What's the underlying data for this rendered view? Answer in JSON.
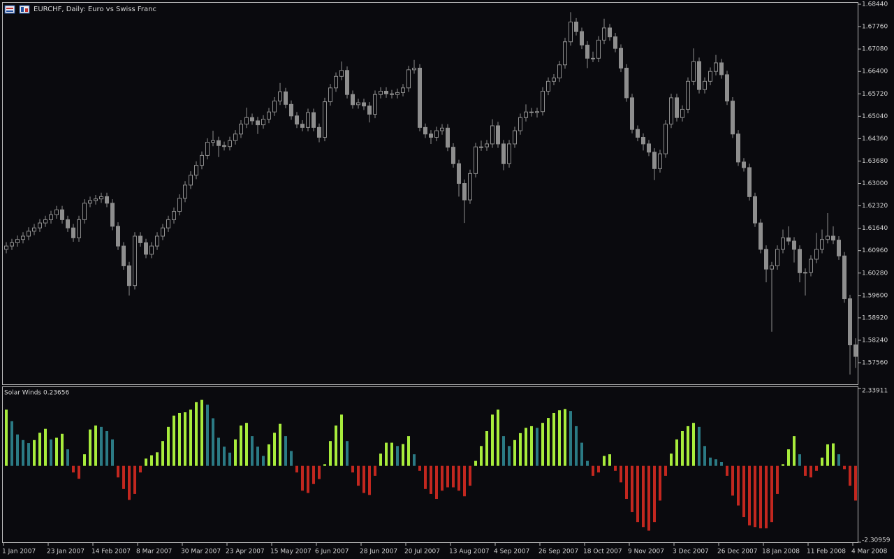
{
  "chart_data": [
    {
      "type": "candlestick",
      "title": "EURCHF, Daily:  Euro vs Swiss Franc",
      "color": "#8e8e8e",
      "categories": [
        "1 Jan 2007",
        null,
        null,
        null,
        null,
        null,
        null,
        null,
        "23 Jan 2007",
        null,
        null,
        null,
        null,
        null,
        null,
        null,
        "14 Feb 2007",
        null,
        null,
        null,
        null,
        null,
        null,
        null,
        "8 Mar 2007",
        null,
        null,
        null,
        null,
        null,
        null,
        null,
        "30 Mar 2007",
        null,
        null,
        null,
        null,
        null,
        null,
        null,
        "23 Apr 2007",
        null,
        null,
        null,
        null,
        null,
        null,
        null,
        "15 May 2007",
        null,
        null,
        null,
        null,
        null,
        null,
        null,
        "6 Jun 2007",
        null,
        null,
        null,
        null,
        null,
        null,
        null,
        "28 Jun 2007",
        null,
        null,
        null,
        null,
        null,
        null,
        null,
        "20 Jul 2007",
        null,
        null,
        null,
        null,
        null,
        null,
        null,
        "13 Aug 2007",
        null,
        null,
        null,
        null,
        null,
        null,
        null,
        "4 Sep 2007",
        null,
        null,
        null,
        null,
        null,
        null,
        null,
        "26 Sep 2007",
        null,
        null,
        null,
        null,
        null,
        null,
        null,
        "18 Oct 2007",
        null,
        null,
        null,
        null,
        null,
        null,
        null,
        "9 Nov 2007",
        null,
        null,
        null,
        null,
        null,
        null,
        null,
        "3 Dec 2007",
        null,
        null,
        null,
        null,
        null,
        null,
        null,
        "26 Dec 2007",
        null,
        null,
        null,
        null,
        null,
        null,
        null,
        "18 Jan 2008",
        null,
        null,
        null,
        null,
        null,
        null,
        null,
        "11 Feb 2008",
        null,
        null,
        null,
        null,
        null,
        null,
        null,
        "4 Mar 2008"
      ],
      "open": [
        1.61,
        1.611,
        1.612,
        1.613,
        1.614,
        1.6155,
        1.6165,
        1.618,
        1.619,
        1.6205,
        1.622,
        1.619,
        1.6165,
        1.6135,
        1.619,
        1.624,
        1.6248,
        1.6253,
        1.626,
        1.624,
        1.617,
        1.611,
        1.605,
        1.599,
        1.614,
        1.612,
        1.6085,
        1.611,
        1.614,
        1.6165,
        1.619,
        1.6215,
        1.6255,
        1.6295,
        1.6325,
        1.6355,
        1.6385,
        1.6425,
        1.643,
        1.6415,
        1.6412,
        1.643,
        1.645,
        1.648,
        1.65,
        1.649,
        1.6478,
        1.6495,
        1.6517,
        1.655,
        1.6578,
        1.654,
        1.6505,
        1.648,
        1.647,
        1.6515,
        1.647,
        1.644,
        1.6548,
        1.659,
        1.6625,
        1.6643,
        1.657,
        1.6539,
        1.6545,
        1.6535,
        1.651,
        1.657,
        1.658,
        1.6572,
        1.657,
        1.6576,
        1.659,
        1.6645,
        1.665,
        1.647,
        1.645,
        1.644,
        1.646,
        1.6468,
        1.641,
        1.636,
        1.63,
        1.625,
        1.633,
        1.6411,
        1.6411,
        1.642,
        1.6475,
        1.642,
        1.636,
        1.642,
        1.646,
        1.65,
        1.6517,
        1.6515,
        1.6518,
        1.658,
        1.661,
        1.662,
        1.666,
        1.673,
        1.679,
        1.6761,
        1.672,
        1.668,
        1.668,
        1.6735,
        1.6772,
        1.6745,
        1.671,
        1.665,
        1.656,
        1.6464,
        1.644,
        1.642,
        1.6395,
        1.6345,
        1.639,
        1.648,
        1.656,
        1.65,
        1.6525,
        1.661,
        1.667,
        1.6585,
        1.661,
        1.664,
        1.6666,
        1.663,
        1.655,
        1.645,
        1.6365,
        1.6348,
        1.626,
        1.618,
        1.61,
        1.604,
        1.605,
        1.61,
        1.6135,
        1.6125,
        1.61,
        1.6029,
        1.603,
        1.607,
        1.61,
        1.613,
        1.614,
        1.6128,
        1.608,
        1.595,
        1.581
      ],
      "high": [
        1.6122,
        1.6132,
        1.6142,
        1.6152,
        1.6167,
        1.6177,
        1.6192,
        1.6202,
        1.6217,
        1.6232,
        1.6232,
        1.6202,
        1.6177,
        1.6202,
        1.6252,
        1.626,
        1.6265,
        1.6272,
        1.6272,
        1.6252,
        1.6182,
        1.6122,
        1.6062,
        1.6152,
        1.6152,
        1.6132,
        1.6122,
        1.6152,
        1.6177,
        1.6202,
        1.6227,
        1.6267,
        1.6307,
        1.6337,
        1.6367,
        1.6397,
        1.6437,
        1.646,
        1.6442,
        1.6427,
        1.6442,
        1.6462,
        1.6492,
        1.653,
        1.6512,
        1.6502,
        1.6507,
        1.6529,
        1.6562,
        1.6605,
        1.659,
        1.6552,
        1.6517,
        1.6492,
        1.6527,
        1.6527,
        1.6482,
        1.656,
        1.6602,
        1.6637,
        1.667,
        1.6655,
        1.6582,
        1.6557,
        1.6557,
        1.6547,
        1.6582,
        1.6592,
        1.6592,
        1.6584,
        1.6588,
        1.6602,
        1.6657,
        1.6675,
        1.6662,
        1.6482,
        1.6462,
        1.6472,
        1.648,
        1.648,
        1.6422,
        1.6372,
        1.6312,
        1.6342,
        1.6423,
        1.643,
        1.6432,
        1.6495,
        1.6487,
        1.6432,
        1.6432,
        1.6472,
        1.6512,
        1.654,
        1.6529,
        1.653,
        1.6592,
        1.6622,
        1.6632,
        1.6672,
        1.6742,
        1.682,
        1.6802,
        1.6773,
        1.6732,
        1.67,
        1.6747,
        1.68,
        1.6784,
        1.6757,
        1.6722,
        1.6662,
        1.6572,
        1.6476,
        1.6452,
        1.6432,
        1.6407,
        1.6402,
        1.6492,
        1.6572,
        1.6572,
        1.6537,
        1.6622,
        1.671,
        1.6682,
        1.6622,
        1.6652,
        1.669,
        1.6678,
        1.6642,
        1.6562,
        1.6462,
        1.6377,
        1.636,
        1.6272,
        1.6192,
        1.6112,
        1.6062,
        1.6112,
        1.616,
        1.617,
        1.6137,
        1.6112,
        1.6042,
        1.6082,
        1.615,
        1.616,
        1.621,
        1.617,
        1.614,
        1.6092,
        1.5962,
        1.583
      ],
      "low": [
        1.6088,
        1.6098,
        1.6108,
        1.6118,
        1.6128,
        1.6143,
        1.6153,
        1.6168,
        1.6178,
        1.6193,
        1.6178,
        1.6153,
        1.6123,
        1.6123,
        1.6178,
        1.6228,
        1.6236,
        1.6241,
        1.6228,
        1.6158,
        1.6098,
        1.6038,
        1.596,
        1.5978,
        1.6108,
        1.6073,
        1.6073,
        1.6098,
        1.6128,
        1.6153,
        1.6178,
        1.6203,
        1.6243,
        1.6283,
        1.6313,
        1.6343,
        1.6373,
        1.6413,
        1.638,
        1.64,
        1.64,
        1.6418,
        1.6438,
        1.6468,
        1.6478,
        1.645,
        1.6466,
        1.6483,
        1.6505,
        1.6538,
        1.6528,
        1.6493,
        1.6468,
        1.6458,
        1.6458,
        1.6458,
        1.6425,
        1.6428,
        1.6536,
        1.6578,
        1.6613,
        1.6558,
        1.6527,
        1.6527,
        1.6523,
        1.6485,
        1.6498,
        1.6558,
        1.656,
        1.6558,
        1.6558,
        1.6564,
        1.6578,
        1.6633,
        1.6458,
        1.6438,
        1.642,
        1.6428,
        1.6448,
        1.6398,
        1.6348,
        1.626,
        1.618,
        1.6238,
        1.6318,
        1.6399,
        1.6399,
        1.6408,
        1.6408,
        1.634,
        1.6348,
        1.6408,
        1.6448,
        1.6488,
        1.6503,
        1.65,
        1.6506,
        1.6568,
        1.6598,
        1.6608,
        1.6648,
        1.6718,
        1.6749,
        1.6708,
        1.665,
        1.6668,
        1.6668,
        1.6723,
        1.6733,
        1.6698,
        1.6638,
        1.6548,
        1.6452,
        1.6428,
        1.64,
        1.6383,
        1.631,
        1.6333,
        1.6378,
        1.6468,
        1.6488,
        1.6488,
        1.6513,
        1.6598,
        1.6573,
        1.6573,
        1.6598,
        1.6628,
        1.6618,
        1.6538,
        1.6438,
        1.6353,
        1.6336,
        1.6248,
        1.6168,
        1.6088,
        1.6,
        1.585,
        1.6038,
        1.6088,
        1.6113,
        1.606,
        1.6,
        1.596,
        1.6018,
        1.6058,
        1.6088,
        1.6118,
        1.6116,
        1.6068,
        1.5938,
        1.572,
        1.574
      ],
      "close": [
        1.611,
        1.612,
        1.613,
        1.614,
        1.6155,
        1.6165,
        1.618,
        1.619,
        1.6205,
        1.622,
        1.619,
        1.6165,
        1.6135,
        1.619,
        1.624,
        1.6248,
        1.6253,
        1.626,
        1.624,
        1.617,
        1.611,
        1.605,
        1.599,
        1.614,
        1.612,
        1.6085,
        1.611,
        1.614,
        1.6165,
        1.619,
        1.6215,
        1.6255,
        1.6295,
        1.6325,
        1.6355,
        1.6385,
        1.6425,
        1.643,
        1.6415,
        1.6412,
        1.643,
        1.645,
        1.648,
        1.65,
        1.649,
        1.6478,
        1.6495,
        1.6517,
        1.655,
        1.6578,
        1.654,
        1.6505,
        1.648,
        1.647,
        1.6515,
        1.647,
        1.644,
        1.6548,
        1.659,
        1.6625,
        1.6643,
        1.657,
        1.6539,
        1.6545,
        1.6535,
        1.651,
        1.657,
        1.658,
        1.6572,
        1.657,
        1.6576,
        1.659,
        1.6645,
        1.665,
        1.647,
        1.645,
        1.644,
        1.646,
        1.6468,
        1.641,
        1.636,
        1.63,
        1.625,
        1.633,
        1.6411,
        1.6411,
        1.642,
        1.6475,
        1.642,
        1.636,
        1.642,
        1.646,
        1.65,
        1.6517,
        1.6515,
        1.6518,
        1.658,
        1.661,
        1.662,
        1.666,
        1.673,
        1.679,
        1.6761,
        1.672,
        1.668,
        1.668,
        1.6735,
        1.6772,
        1.6745,
        1.671,
        1.665,
        1.656,
        1.6464,
        1.644,
        1.642,
        1.6395,
        1.6345,
        1.639,
        1.648,
        1.656,
        1.65,
        1.6525,
        1.661,
        1.667,
        1.6585,
        1.661,
        1.664,
        1.6666,
        1.663,
        1.655,
        1.645,
        1.6365,
        1.6348,
        1.626,
        1.618,
        1.61,
        1.604,
        1.605,
        1.61,
        1.6135,
        1.6125,
        1.61,
        1.6029,
        1.603,
        1.607,
        1.61,
        1.613,
        1.614,
        1.6128,
        1.608,
        1.595,
        1.581,
        1.5775
      ],
      "ylim": [
        1.56903,
        1.68504
      ],
      "yticks": [
        {
          "value": 1.6844,
          "label": "1.68440"
        },
        {
          "value": 1.6776,
          "label": "1.67760"
        },
        {
          "value": 1.6708,
          "label": "1.67080"
        },
        {
          "value": 1.664,
          "label": "1.66400"
        },
        {
          "value": 1.6572,
          "label": "1.65720"
        },
        {
          "value": 1.6504,
          "label": "1.65040"
        },
        {
          "value": 1.6436,
          "label": "1.64360"
        },
        {
          "value": 1.6368,
          "label": "1.63680"
        },
        {
          "value": 1.63,
          "label": "1.63000"
        },
        {
          "value": 1.6232,
          "label": "1.62320"
        },
        {
          "value": 1.6164,
          "label": "1.61640"
        },
        {
          "value": 1.6096,
          "label": "1.60960"
        },
        {
          "value": 1.6028,
          "label": "1.60280"
        },
        {
          "value": 1.596,
          "label": "1.59600"
        },
        {
          "value": 1.5892,
          "label": "1.58920"
        },
        {
          "value": 1.5824,
          "label": "1.58240"
        },
        {
          "value": 1.5756,
          "label": "1.57560"
        }
      ]
    },
    {
      "type": "oscillator",
      "title": "Solar Winds 0.23656",
      "colors": {
        "rising": "#a8ec3c",
        "falling": "#2b7a84",
        "negative": "#c2271f"
      },
      "values": [
        1.7,
        1.35,
        0.95,
        0.78,
        0.69,
        0.78,
        1.0,
        1.12,
        0.8,
        0.85,
        0.97,
        0.5,
        -0.2,
        -0.39,
        0.35,
        1.1,
        1.22,
        1.18,
        1.05,
        0.8,
        -0.35,
        -0.7,
        -1.03,
        -0.85,
        -0.2,
        0.22,
        0.32,
        0.41,
        0.75,
        1.18,
        1.52,
        1.6,
        1.62,
        1.7,
        1.93,
        2.0,
        1.85,
        1.44,
        0.85,
        0.58,
        0.4,
        0.8,
        1.22,
        1.3,
        0.9,
        0.58,
        0.3,
        0.65,
        1.0,
        1.27,
        0.9,
        0.45,
        -0.2,
        -0.75,
        -0.82,
        -0.55,
        -0.4,
        0.05,
        0.75,
        1.22,
        1.55,
        0.75,
        -0.2,
        -0.6,
        -0.82,
        -0.88,
        -0.3,
        0.37,
        0.7,
        0.7,
        0.6,
        0.66,
        0.9,
        0.35,
        -0.15,
        -0.7,
        -0.85,
        -1.0,
        -0.75,
        -0.65,
        -0.65,
        -0.75,
        -0.92,
        -0.6,
        0.15,
        0.6,
        1.05,
        1.55,
        1.7,
        0.9,
        0.6,
        0.78,
        0.99,
        1.15,
        1.2,
        1.15,
        1.3,
        1.45,
        1.6,
        1.68,
        1.72,
        1.66,
        1.2,
        0.7,
        0.15,
        -0.3,
        -0.2,
        0.3,
        0.35,
        -0.15,
        -0.5,
        -1.0,
        -1.4,
        -1.7,
        -1.85,
        -1.96,
        -1.7,
        -1.05,
        -0.3,
        0.37,
        0.8,
        1.05,
        1.2,
        1.3,
        1.18,
        0.6,
        0.25,
        0.2,
        0.12,
        -0.3,
        -0.9,
        -1.2,
        -1.55,
        -1.8,
        -1.85,
        -1.89,
        -1.89,
        -1.7,
        -0.85,
        0.05,
        0.5,
        0.9,
        0.35,
        -0.3,
        -0.35,
        -0.15,
        0.25,
        0.65,
        0.68,
        0.35,
        -0.1,
        -0.6,
        -1.05
      ],
      "ylim": [
        -2.30959,
        2.33911
      ],
      "yticks": [
        2.33911,
        -2.30959
      ]
    }
  ]
}
